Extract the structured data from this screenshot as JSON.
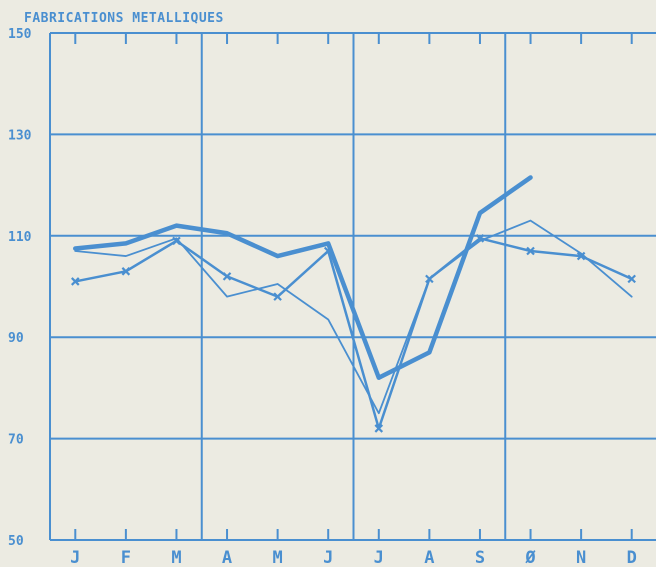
{
  "colors": {
    "accent": "#4a8fd0",
    "background": "#ecebe2"
  },
  "chart_data": {
    "type": "line",
    "title": "FABRICATIONS METALLIQUES",
    "categories": [
      "J",
      "F",
      "M",
      "A",
      "M",
      "J",
      "J",
      "A",
      "S",
      "Ø",
      "N",
      "D"
    ],
    "yticks": [
      "150",
      "130",
      "110",
      "90",
      "70",
      "50"
    ],
    "ylim": [
      50,
      150
    ],
    "grid": true,
    "series": [
      {
        "style": "thick",
        "marker": "none",
        "values": [
          107.5,
          108.5,
          112,
          110.5,
          106,
          108.5,
          82,
          87,
          114.5,
          121.5,
          null,
          null
        ]
      },
      {
        "style": "medium",
        "marker": "x",
        "values": [
          101,
          103,
          109,
          102,
          98,
          107,
          72,
          101.5,
          109.5,
          107,
          106,
          101.5
        ]
      },
      {
        "style": "thin",
        "marker": "none",
        "values": [
          107,
          106,
          109.5,
          98,
          100.5,
          93.5,
          75,
          101.5,
          109,
          113,
          106.5,
          98
        ]
      }
    ]
  }
}
